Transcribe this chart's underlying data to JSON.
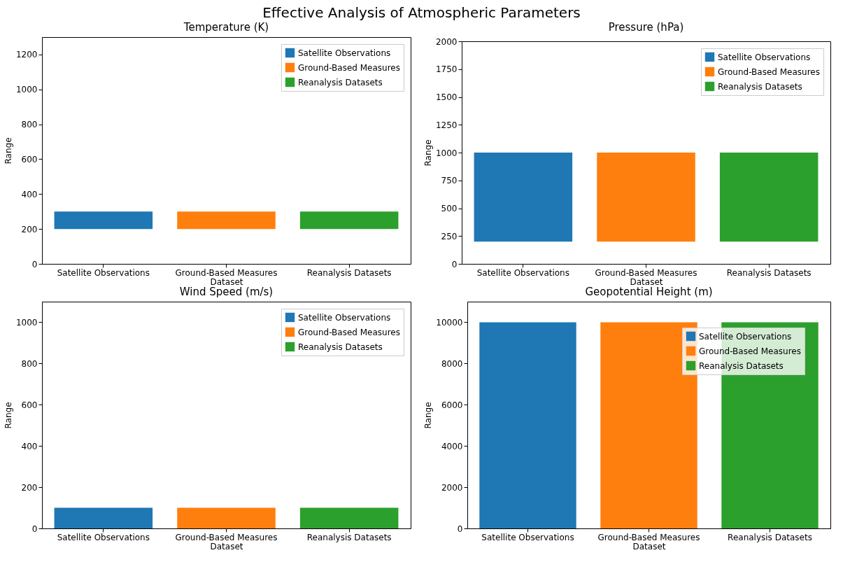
{
  "chart_data": [
    {
      "type": "bar",
      "title": "Temperature (K)",
      "xlabel": "Dataset",
      "ylabel": "Range",
      "categories": [
        "Satellite Observations",
        "Ground-Based Measures",
        "Reanalysis Datasets"
      ],
      "series": [
        {
          "name": "Satellite Observations",
          "color": "#1f77b4",
          "values": [
            100,
            null,
            null
          ],
          "base": [
            200,
            null,
            null
          ]
        },
        {
          "name": "Ground-Based Measures",
          "color": "#ff7f0e",
          "values": [
            null,
            100,
            null
          ],
          "base": [
            null,
            200,
            null
          ]
        },
        {
          "name": "Reanalysis Datasets",
          "color": "#2ca02c",
          "values": [
            null,
            null,
            100
          ],
          "base": [
            null,
            null,
            200
          ]
        }
      ],
      "ylim": [
        0,
        1300
      ],
      "yticks": [
        0,
        200,
        400,
        600,
        800,
        1000,
        1200
      ],
      "legend": "top right",
      "grid": false,
      "annotations": [
        "Effective Analysis of Atmospheric Parameters"
      ]
    },
    {
      "type": "bar",
      "title": "Pressure (hPa)",
      "xlabel": "Dataset",
      "ylabel": "Range",
      "categories": [
        "Satellite Observations",
        "Ground-Based Measures",
        "Reanalysis Datasets"
      ],
      "series": [
        {
          "name": "Satellite Observations",
          "color": "#1f77b4",
          "values": [
            800,
            null,
            null
          ],
          "base": [
            200,
            null,
            null
          ]
        },
        {
          "name": "Ground-Based Measures",
          "color": "#ff7f0e",
          "values": [
            null,
            800,
            null
          ],
          "base": [
            null,
            200,
            null
          ]
        },
        {
          "name": "Reanalysis Datasets",
          "color": "#2ca02c",
          "values": [
            null,
            null,
            800
          ],
          "base": [
            null,
            null,
            200
          ]
        }
      ],
      "ylim": [
        0,
        2000
      ],
      "yticks": [
        0,
        250,
        500,
        750,
        1000,
        1250,
        1500,
        1750,
        2000
      ],
      "legend": "top right",
      "grid": false
    },
    {
      "type": "bar",
      "title": "Wind Speed (m/s)",
      "xlabel": "Dataset",
      "ylabel": "Range",
      "categories": [
        "Satellite Observations",
        "Ground-Based Measures",
        "Reanalysis Datasets"
      ],
      "series": [
        {
          "name": "Satellite Observations",
          "color": "#1f77b4",
          "values": [
            100,
            null,
            null
          ]
        },
        {
          "name": "Ground-Based Measures",
          "color": "#ff7f0e",
          "values": [
            null,
            100,
            null
          ]
        },
        {
          "name": "Reanalysis Datasets",
          "color": "#2ca02c",
          "values": [
            null,
            null,
            100
          ]
        }
      ],
      "ylim": [
        0,
        1100
      ],
      "yticks": [
        0,
        200,
        400,
        600,
        800,
        1000
      ],
      "legend": "top right",
      "grid": false
    },
    {
      "type": "bar",
      "title": "Geopotential Height (m)",
      "xlabel": "Dataset",
      "ylabel": "Range",
      "categories": [
        "Satellite Observations",
        "Ground-Based Measures",
        "Reanalysis Datasets"
      ],
      "series": [
        {
          "name": "Satellite Observations",
          "color": "#1f77b4",
          "values": [
            10000,
            null,
            null
          ]
        },
        {
          "name": "Ground-Based Measures",
          "color": "#ff7f0e",
          "values": [
            null,
            10000,
            null
          ]
        },
        {
          "name": "Reanalysis Datasets",
          "color": "#2ca02c",
          "values": [
            null,
            null,
            10000
          ]
        }
      ],
      "ylim": [
        0,
        11000
      ],
      "yticks": [
        0,
        2000,
        4000,
        6000,
        8000,
        10000
      ],
      "legend": "top right",
      "grid": false
    }
  ]
}
